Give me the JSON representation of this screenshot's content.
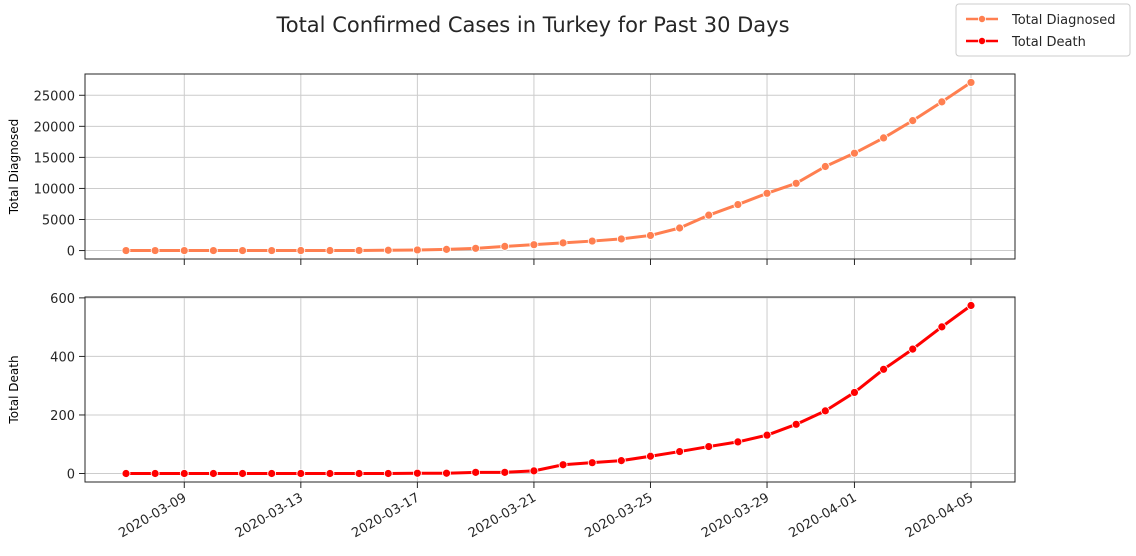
{
  "figure": {
    "title": "Total Confirmed Cases in Turkey for Past 30 Days",
    "legend": {
      "placement": "top-right",
      "entries": [
        {
          "label": "Total Diagnosed",
          "color": "#FF7F50"
        },
        {
          "label": "Total Death",
          "color": "#FF0000"
        }
      ]
    }
  },
  "chart_data": [
    {
      "type": "line",
      "title": "",
      "xlabel": "",
      "ylabel": "Total Diagnosed",
      "x": [
        "2020-03-07",
        "2020-03-08",
        "2020-03-09",
        "2020-03-10",
        "2020-03-11",
        "2020-03-12",
        "2020-03-13",
        "2020-03-14",
        "2020-03-15",
        "2020-03-16",
        "2020-03-17",
        "2020-03-18",
        "2020-03-19",
        "2020-03-20",
        "2020-03-21",
        "2020-03-22",
        "2020-03-23",
        "2020-03-24",
        "2020-03-25",
        "2020-03-26",
        "2020-03-27",
        "2020-03-28",
        "2020-03-29",
        "2020-03-30",
        "2020-03-31",
        "2020-04-01",
        "2020-04-02",
        "2020-04-03",
        "2020-04-04",
        "2020-04-05"
      ],
      "series": [
        {
          "name": "Total Diagnosed",
          "color": "#FF7F50",
          "values": [
            0,
            0,
            0,
            0,
            1,
            1,
            5,
            6,
            18,
            47,
            98,
            191,
            359,
            670,
            947,
            1236,
            1529,
            1872,
            2433,
            3629,
            5698,
            7402,
            9217,
            10827,
            13531,
            15679,
            18135,
            20921,
            23934,
            27069
          ]
        }
      ],
      "ylim": [
        -1360,
        28425
      ],
      "yticks": [
        0,
        5000,
        10000,
        15000,
        20000,
        25000
      ],
      "grid": true
    },
    {
      "type": "line",
      "title": "",
      "xlabel": "",
      "ylabel": "Total Death",
      "x": [
        "2020-03-07",
        "2020-03-08",
        "2020-03-09",
        "2020-03-10",
        "2020-03-11",
        "2020-03-12",
        "2020-03-13",
        "2020-03-14",
        "2020-03-15",
        "2020-03-16",
        "2020-03-17",
        "2020-03-18",
        "2020-03-19",
        "2020-03-20",
        "2020-03-21",
        "2020-03-22",
        "2020-03-23",
        "2020-03-24",
        "2020-03-25",
        "2020-03-26",
        "2020-03-27",
        "2020-03-28",
        "2020-03-29",
        "2020-03-30",
        "2020-03-31",
        "2020-04-01",
        "2020-04-02",
        "2020-04-03",
        "2020-04-04",
        "2020-04-05"
      ],
      "series": [
        {
          "name": "Total Death",
          "color": "#FF0000",
          "values": [
            0,
            0,
            0,
            0,
            0,
            0,
            0,
            0,
            0,
            0,
            1,
            1,
            4,
            4,
            9,
            30,
            37,
            44,
            59,
            75,
            92,
            108,
            131,
            168,
            214,
            277,
            356,
            425,
            501,
            574
          ]
        }
      ],
      "ylim": [
        -29,
        603
      ],
      "yticks": [
        0,
        200,
        400,
        600
      ],
      "xticks": [
        "2020-03-09",
        "2020-03-13",
        "2020-03-17",
        "2020-03-21",
        "2020-03-25",
        "2020-03-29",
        "2020-04-01",
        "2020-04-05"
      ],
      "grid": true
    }
  ]
}
